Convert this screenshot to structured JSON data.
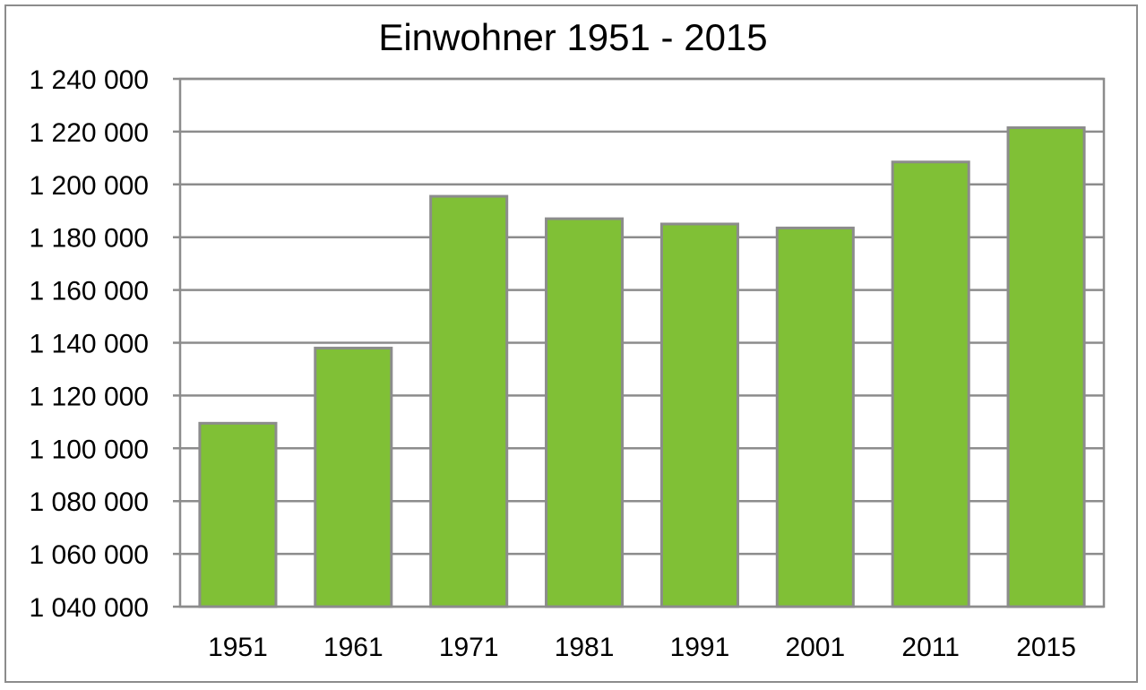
{
  "chart_data": {
    "type": "bar",
    "title": "Einwohner 1951 - 2015",
    "xlabel": "",
    "ylabel": "",
    "categories": [
      "1951",
      "1961",
      "1971",
      "1981",
      "1991",
      "2001",
      "2011",
      "2015"
    ],
    "values": [
      1109500,
      1138000,
      1195500,
      1187000,
      1185000,
      1183500,
      1208500,
      1221500
    ],
    "ylim": [
      1040000,
      1240000
    ],
    "y_tick_step": 20000,
    "y_tick_labels": [
      "1 040 000",
      "1 060 000",
      "1 080 000",
      "1 100 000",
      "1 120 000",
      "1 140 000",
      "1 160 000",
      "1 180 000",
      "1 200 000",
      "1 220 000",
      "1 240 000"
    ],
    "grid": true,
    "legend": "none",
    "colors": {
      "bar_fill": "#80c036",
      "bar_stroke": "#8c8c8c",
      "grid": "#8c8c8c",
      "frame": "#8c8c8c"
    }
  }
}
